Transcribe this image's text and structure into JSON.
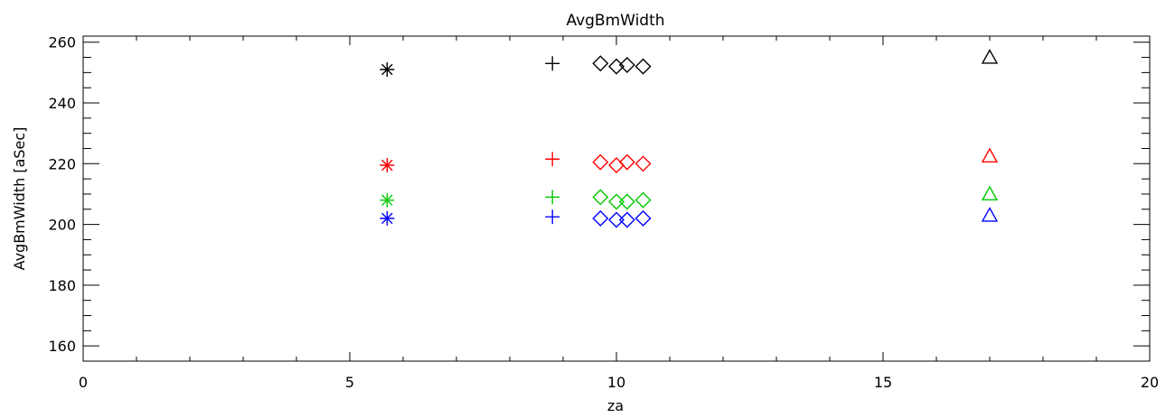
{
  "chart_data": {
    "type": "scatter",
    "title": "AvgBmWidth",
    "xlabel": "za",
    "ylabel": "AvgBmWidth [aSec]",
    "xlim": [
      0,
      20
    ],
    "ylim": [
      155,
      262
    ],
    "xticks": [
      0,
      5,
      10,
      15,
      20
    ],
    "yticks": [
      160,
      180,
      200,
      220,
      240,
      260
    ],
    "grid": false,
    "series": [
      {
        "color": "#000000",
        "points": [
          {
            "x": 5.7,
            "y": 251,
            "marker": "asterisk"
          },
          {
            "x": 8.8,
            "y": 253,
            "marker": "plus"
          },
          {
            "x": 9.7,
            "y": 253,
            "marker": "diamond"
          },
          {
            "x": 10.0,
            "y": 252,
            "marker": "diamond"
          },
          {
            "x": 10.2,
            "y": 252.5,
            "marker": "diamond"
          },
          {
            "x": 10.5,
            "y": 252,
            "marker": "diamond"
          },
          {
            "x": 17.0,
            "y": 255,
            "marker": "triangle"
          }
        ]
      },
      {
        "color": "#ff0000",
        "points": [
          {
            "x": 5.7,
            "y": 219.5,
            "marker": "asterisk"
          },
          {
            "x": 8.8,
            "y": 221.5,
            "marker": "plus"
          },
          {
            "x": 9.7,
            "y": 220.5,
            "marker": "diamond"
          },
          {
            "x": 10.0,
            "y": 219.5,
            "marker": "diamond"
          },
          {
            "x": 10.2,
            "y": 220.5,
            "marker": "diamond"
          },
          {
            "x": 10.5,
            "y": 220,
            "marker": "diamond"
          },
          {
            "x": 17.0,
            "y": 222.5,
            "marker": "triangle"
          }
        ]
      },
      {
        "color": "#00c800",
        "points": [
          {
            "x": 5.7,
            "y": 208,
            "marker": "asterisk"
          },
          {
            "x": 8.8,
            "y": 209,
            "marker": "plus"
          },
          {
            "x": 9.7,
            "y": 209,
            "marker": "diamond"
          },
          {
            "x": 10.0,
            "y": 207.5,
            "marker": "diamond"
          },
          {
            "x": 10.2,
            "y": 207.5,
            "marker": "diamond"
          },
          {
            "x": 10.5,
            "y": 208,
            "marker": "diamond"
          },
          {
            "x": 17.0,
            "y": 210,
            "marker": "triangle"
          }
        ]
      },
      {
        "color": "#0000ff",
        "points": [
          {
            "x": 5.7,
            "y": 202,
            "marker": "asterisk"
          },
          {
            "x": 8.8,
            "y": 202.5,
            "marker": "plus"
          },
          {
            "x": 9.7,
            "y": 202,
            "marker": "diamond"
          },
          {
            "x": 10.0,
            "y": 201.5,
            "marker": "diamond"
          },
          {
            "x": 10.2,
            "y": 201.5,
            "marker": "diamond"
          },
          {
            "x": 10.5,
            "y": 202,
            "marker": "diamond"
          },
          {
            "x": 17.0,
            "y": 203,
            "marker": "triangle"
          }
        ]
      }
    ]
  }
}
